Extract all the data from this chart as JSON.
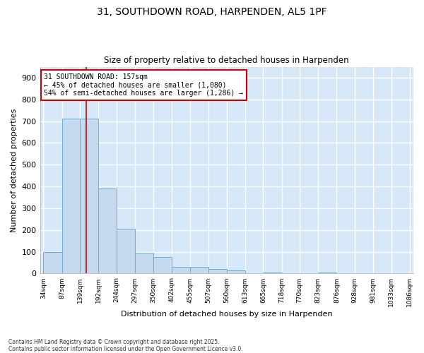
{
  "title": "31, SOUTHDOWN ROAD, HARPENDEN, AL5 1PF",
  "subtitle": "Size of property relative to detached houses in Harpenden",
  "xlabel": "Distribution of detached houses by size in Harpenden",
  "ylabel": "Number of detached properties",
  "annotation_text": "31 SOUTHDOWN ROAD: 157sqm\n← 45% of detached houses are smaller (1,080)\n54% of semi-detached houses are larger (1,286) →",
  "footnote": "Contains HM Land Registry data © Crown copyright and database right 2025.\nContains public sector information licensed under the Open Government Licence v3.0.",
  "property_size": 157,
  "bar_edges": [
    34,
    87,
    139,
    192,
    244,
    297,
    350,
    402,
    455,
    507,
    560,
    613,
    665,
    718,
    770,
    823,
    876,
    928,
    981,
    1033,
    1086
  ],
  "bar_heights": [
    100,
    711,
    711,
    390,
    207,
    97,
    75,
    30,
    30,
    20,
    15,
    0,
    5,
    0,
    0,
    5,
    0,
    0,
    0,
    0
  ],
  "bar_color": "#c5d9ef",
  "bar_edge_color": "#6baed6",
  "vline_color": "#cc0000",
  "annotation_box_color": "#cc0000",
  "plot_bg_color": "#d6e8f7",
  "fig_bg_color": "#ffffff",
  "grid_color": "#ffffff",
  "ylim": [
    0,
    950
  ],
  "yticks": [
    0,
    100,
    200,
    300,
    400,
    500,
    600,
    700,
    800,
    900
  ]
}
